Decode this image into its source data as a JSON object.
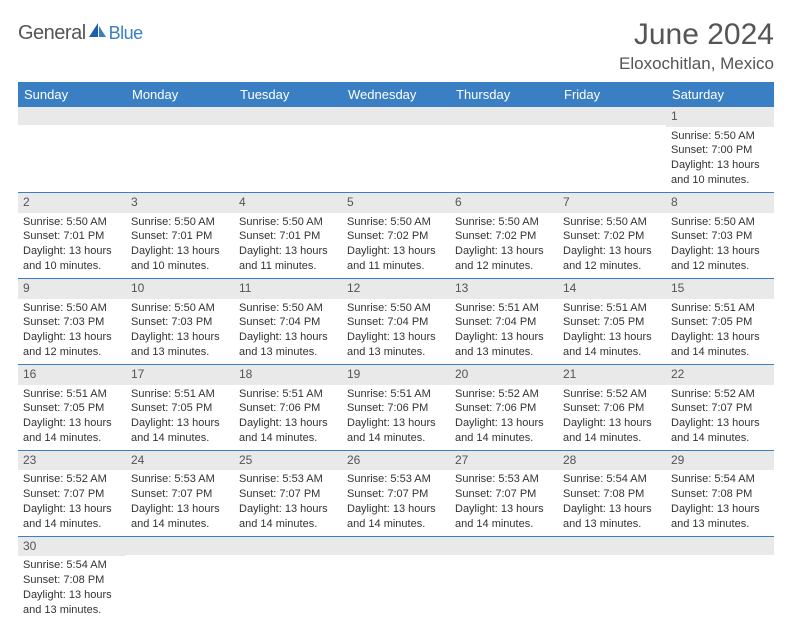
{
  "logo": {
    "text1": "General",
    "text2": "Blue"
  },
  "title": "June 2024",
  "location": "Eloxochitlan, Mexico",
  "colors": {
    "header_bg": "#3a7fc4",
    "header_text": "#ffffff",
    "daynum_bg": "#e9e9e9",
    "daynum_text": "#555555",
    "cell_border": "#3a7fc4",
    "body_text": "#333333",
    "title_text": "#555555"
  },
  "weekdays": [
    "Sunday",
    "Monday",
    "Tuesday",
    "Wednesday",
    "Thursday",
    "Friday",
    "Saturday"
  ],
  "weeks": [
    [
      {
        "n": "",
        "lines": []
      },
      {
        "n": "",
        "lines": []
      },
      {
        "n": "",
        "lines": []
      },
      {
        "n": "",
        "lines": []
      },
      {
        "n": "",
        "lines": []
      },
      {
        "n": "",
        "lines": []
      },
      {
        "n": "1",
        "lines": [
          "Sunrise: 5:50 AM",
          "Sunset: 7:00 PM",
          "Daylight: 13 hours",
          "and 10 minutes."
        ]
      }
    ],
    [
      {
        "n": "2",
        "lines": [
          "Sunrise: 5:50 AM",
          "Sunset: 7:01 PM",
          "Daylight: 13 hours",
          "and 10 minutes."
        ]
      },
      {
        "n": "3",
        "lines": [
          "Sunrise: 5:50 AM",
          "Sunset: 7:01 PM",
          "Daylight: 13 hours",
          "and 10 minutes."
        ]
      },
      {
        "n": "4",
        "lines": [
          "Sunrise: 5:50 AM",
          "Sunset: 7:01 PM",
          "Daylight: 13 hours",
          "and 11 minutes."
        ]
      },
      {
        "n": "5",
        "lines": [
          "Sunrise: 5:50 AM",
          "Sunset: 7:02 PM",
          "Daylight: 13 hours",
          "and 11 minutes."
        ]
      },
      {
        "n": "6",
        "lines": [
          "Sunrise: 5:50 AM",
          "Sunset: 7:02 PM",
          "Daylight: 13 hours",
          "and 12 minutes."
        ]
      },
      {
        "n": "7",
        "lines": [
          "Sunrise: 5:50 AM",
          "Sunset: 7:02 PM",
          "Daylight: 13 hours",
          "and 12 minutes."
        ]
      },
      {
        "n": "8",
        "lines": [
          "Sunrise: 5:50 AM",
          "Sunset: 7:03 PM",
          "Daylight: 13 hours",
          "and 12 minutes."
        ]
      }
    ],
    [
      {
        "n": "9",
        "lines": [
          "Sunrise: 5:50 AM",
          "Sunset: 7:03 PM",
          "Daylight: 13 hours",
          "and 12 minutes."
        ]
      },
      {
        "n": "10",
        "lines": [
          "Sunrise: 5:50 AM",
          "Sunset: 7:03 PM",
          "Daylight: 13 hours",
          "and 13 minutes."
        ]
      },
      {
        "n": "11",
        "lines": [
          "Sunrise: 5:50 AM",
          "Sunset: 7:04 PM",
          "Daylight: 13 hours",
          "and 13 minutes."
        ]
      },
      {
        "n": "12",
        "lines": [
          "Sunrise: 5:50 AM",
          "Sunset: 7:04 PM",
          "Daylight: 13 hours",
          "and 13 minutes."
        ]
      },
      {
        "n": "13",
        "lines": [
          "Sunrise: 5:51 AM",
          "Sunset: 7:04 PM",
          "Daylight: 13 hours",
          "and 13 minutes."
        ]
      },
      {
        "n": "14",
        "lines": [
          "Sunrise: 5:51 AM",
          "Sunset: 7:05 PM",
          "Daylight: 13 hours",
          "and 14 minutes."
        ]
      },
      {
        "n": "15",
        "lines": [
          "Sunrise: 5:51 AM",
          "Sunset: 7:05 PM",
          "Daylight: 13 hours",
          "and 14 minutes."
        ]
      }
    ],
    [
      {
        "n": "16",
        "lines": [
          "Sunrise: 5:51 AM",
          "Sunset: 7:05 PM",
          "Daylight: 13 hours",
          "and 14 minutes."
        ]
      },
      {
        "n": "17",
        "lines": [
          "Sunrise: 5:51 AM",
          "Sunset: 7:05 PM",
          "Daylight: 13 hours",
          "and 14 minutes."
        ]
      },
      {
        "n": "18",
        "lines": [
          "Sunrise: 5:51 AM",
          "Sunset: 7:06 PM",
          "Daylight: 13 hours",
          "and 14 minutes."
        ]
      },
      {
        "n": "19",
        "lines": [
          "Sunrise: 5:51 AM",
          "Sunset: 7:06 PM",
          "Daylight: 13 hours",
          "and 14 minutes."
        ]
      },
      {
        "n": "20",
        "lines": [
          "Sunrise: 5:52 AM",
          "Sunset: 7:06 PM",
          "Daylight: 13 hours",
          "and 14 minutes."
        ]
      },
      {
        "n": "21",
        "lines": [
          "Sunrise: 5:52 AM",
          "Sunset: 7:06 PM",
          "Daylight: 13 hours",
          "and 14 minutes."
        ]
      },
      {
        "n": "22",
        "lines": [
          "Sunrise: 5:52 AM",
          "Sunset: 7:07 PM",
          "Daylight: 13 hours",
          "and 14 minutes."
        ]
      }
    ],
    [
      {
        "n": "23",
        "lines": [
          "Sunrise: 5:52 AM",
          "Sunset: 7:07 PM",
          "Daylight: 13 hours",
          "and 14 minutes."
        ]
      },
      {
        "n": "24",
        "lines": [
          "Sunrise: 5:53 AM",
          "Sunset: 7:07 PM",
          "Daylight: 13 hours",
          "and 14 minutes."
        ]
      },
      {
        "n": "25",
        "lines": [
          "Sunrise: 5:53 AM",
          "Sunset: 7:07 PM",
          "Daylight: 13 hours",
          "and 14 minutes."
        ]
      },
      {
        "n": "26",
        "lines": [
          "Sunrise: 5:53 AM",
          "Sunset: 7:07 PM",
          "Daylight: 13 hours",
          "and 14 minutes."
        ]
      },
      {
        "n": "27",
        "lines": [
          "Sunrise: 5:53 AM",
          "Sunset: 7:07 PM",
          "Daylight: 13 hours",
          "and 14 minutes."
        ]
      },
      {
        "n": "28",
        "lines": [
          "Sunrise: 5:54 AM",
          "Sunset: 7:08 PM",
          "Daylight: 13 hours",
          "and 13 minutes."
        ]
      },
      {
        "n": "29",
        "lines": [
          "Sunrise: 5:54 AM",
          "Sunset: 7:08 PM",
          "Daylight: 13 hours",
          "and 13 minutes."
        ]
      }
    ],
    [
      {
        "n": "30",
        "lines": [
          "Sunrise: 5:54 AM",
          "Sunset: 7:08 PM",
          "Daylight: 13 hours",
          "and 13 minutes."
        ]
      },
      {
        "n": "",
        "lines": []
      },
      {
        "n": "",
        "lines": []
      },
      {
        "n": "",
        "lines": []
      },
      {
        "n": "",
        "lines": []
      },
      {
        "n": "",
        "lines": []
      },
      {
        "n": "",
        "lines": []
      }
    ]
  ]
}
